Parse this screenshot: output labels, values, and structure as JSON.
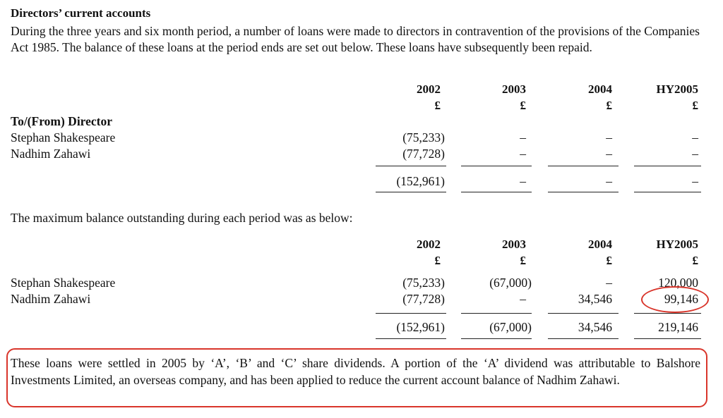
{
  "heading": "Directors’ current accounts",
  "intro": "During the three years and six month period, a number of loans were made to directors in contravention of the provisions of the Companies Act 1985. The balance of these loans at the period ends are set out below. These loans have subsequently been repaid.",
  "currency": "£",
  "table1": {
    "years": [
      "2002",
      "2003",
      "2004",
      "HY2005"
    ],
    "section_label": "To/(From) Director",
    "rows": [
      {
        "name": "Stephan Shakespeare",
        "values": [
          "(75,233)",
          "–",
          "–",
          "–"
        ]
      },
      {
        "name": "Nadhim Zahawi",
        "values": [
          "(77,728)",
          "–",
          "–",
          "–"
        ]
      }
    ],
    "totals": [
      "(152,961)",
      "–",
      "–",
      "–"
    ]
  },
  "max_intro": "The maximum balance outstanding during each period was as below:",
  "table2": {
    "years": [
      "2002",
      "2003",
      "2004",
      "HY2005"
    ],
    "rows": [
      {
        "name": "Stephan Shakespeare",
        "values": [
          "(75,233)",
          "(67,000)",
          "–",
          "120,000"
        ]
      },
      {
        "name": "Nadhim Zahawi",
        "values": [
          "(77,728)",
          "–",
          "34,546",
          "99,146"
        ]
      }
    ],
    "totals": [
      "(152,961)",
      "(67,000)",
      "34,546",
      "219,146"
    ]
  },
  "note": "These loans were settled in 2005 by ‘A’, ‘B’ and ‘C’ share dividends. A portion of the ‘A’ dividend was attributable to Balshore Investments Limited, an overseas company, and has been applied to reduce the current account balance of Nadhim Zahawi.",
  "annotation_color": "#d9352b"
}
